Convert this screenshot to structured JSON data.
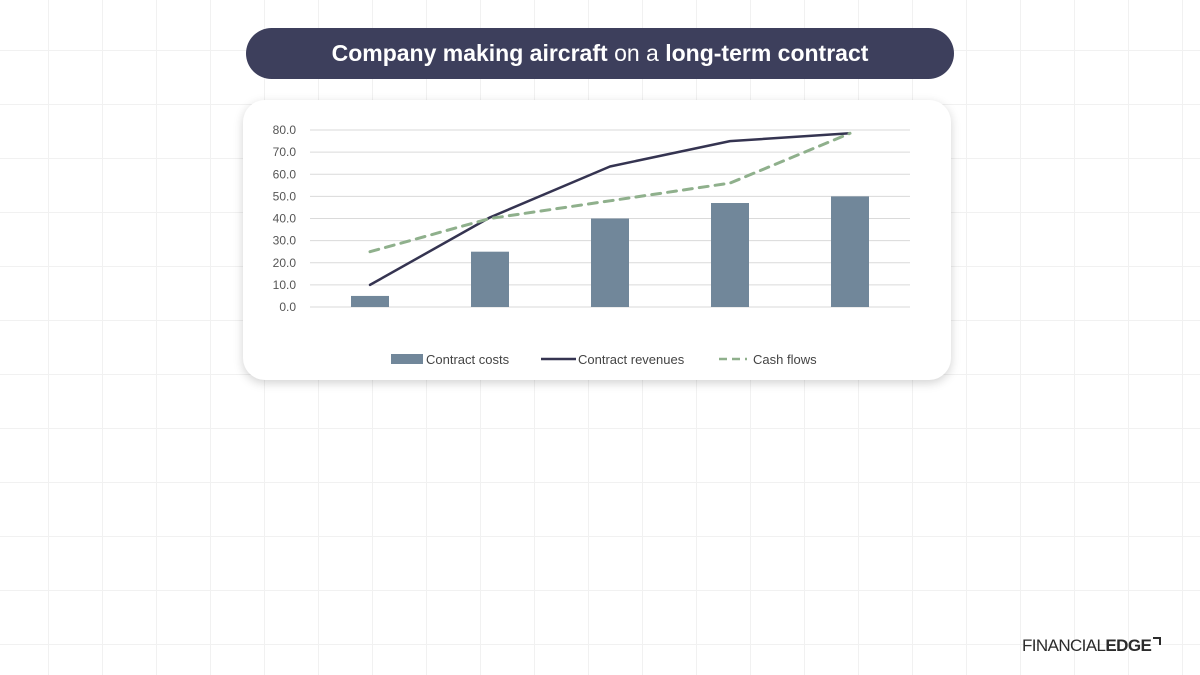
{
  "title": {
    "part1": "Company making aircraft",
    "part2": "on a",
    "part3": "long-term contract"
  },
  "chart_data": {
    "type": "bar",
    "categories": [
      "",
      "",
      "",
      "",
      ""
    ],
    "y_ticks": [
      "0.0",
      "10.0",
      "20.0",
      "30.0",
      "40.0",
      "50.0",
      "60.0",
      "70.0",
      "80.0"
    ],
    "ylim": [
      0,
      80
    ],
    "grid": true,
    "legend_position": "bottom",
    "series": [
      {
        "name": "Contract costs",
        "kind": "bar",
        "color": "#71879a",
        "values": [
          5,
          25,
          40,
          47,
          50
        ]
      },
      {
        "name": "Contract revenues",
        "kind": "line",
        "color": "#353451",
        "values": [
          10,
          40.5,
          63.5,
          75,
          78.5
        ]
      },
      {
        "name": "Cash flows",
        "kind": "dashed-line",
        "color": "#8fb08c",
        "values": [
          25,
          40,
          48,
          56,
          78.5
        ]
      }
    ]
  },
  "logo": {
    "part1": "FINANCIAL",
    "part2": "EDGE"
  }
}
